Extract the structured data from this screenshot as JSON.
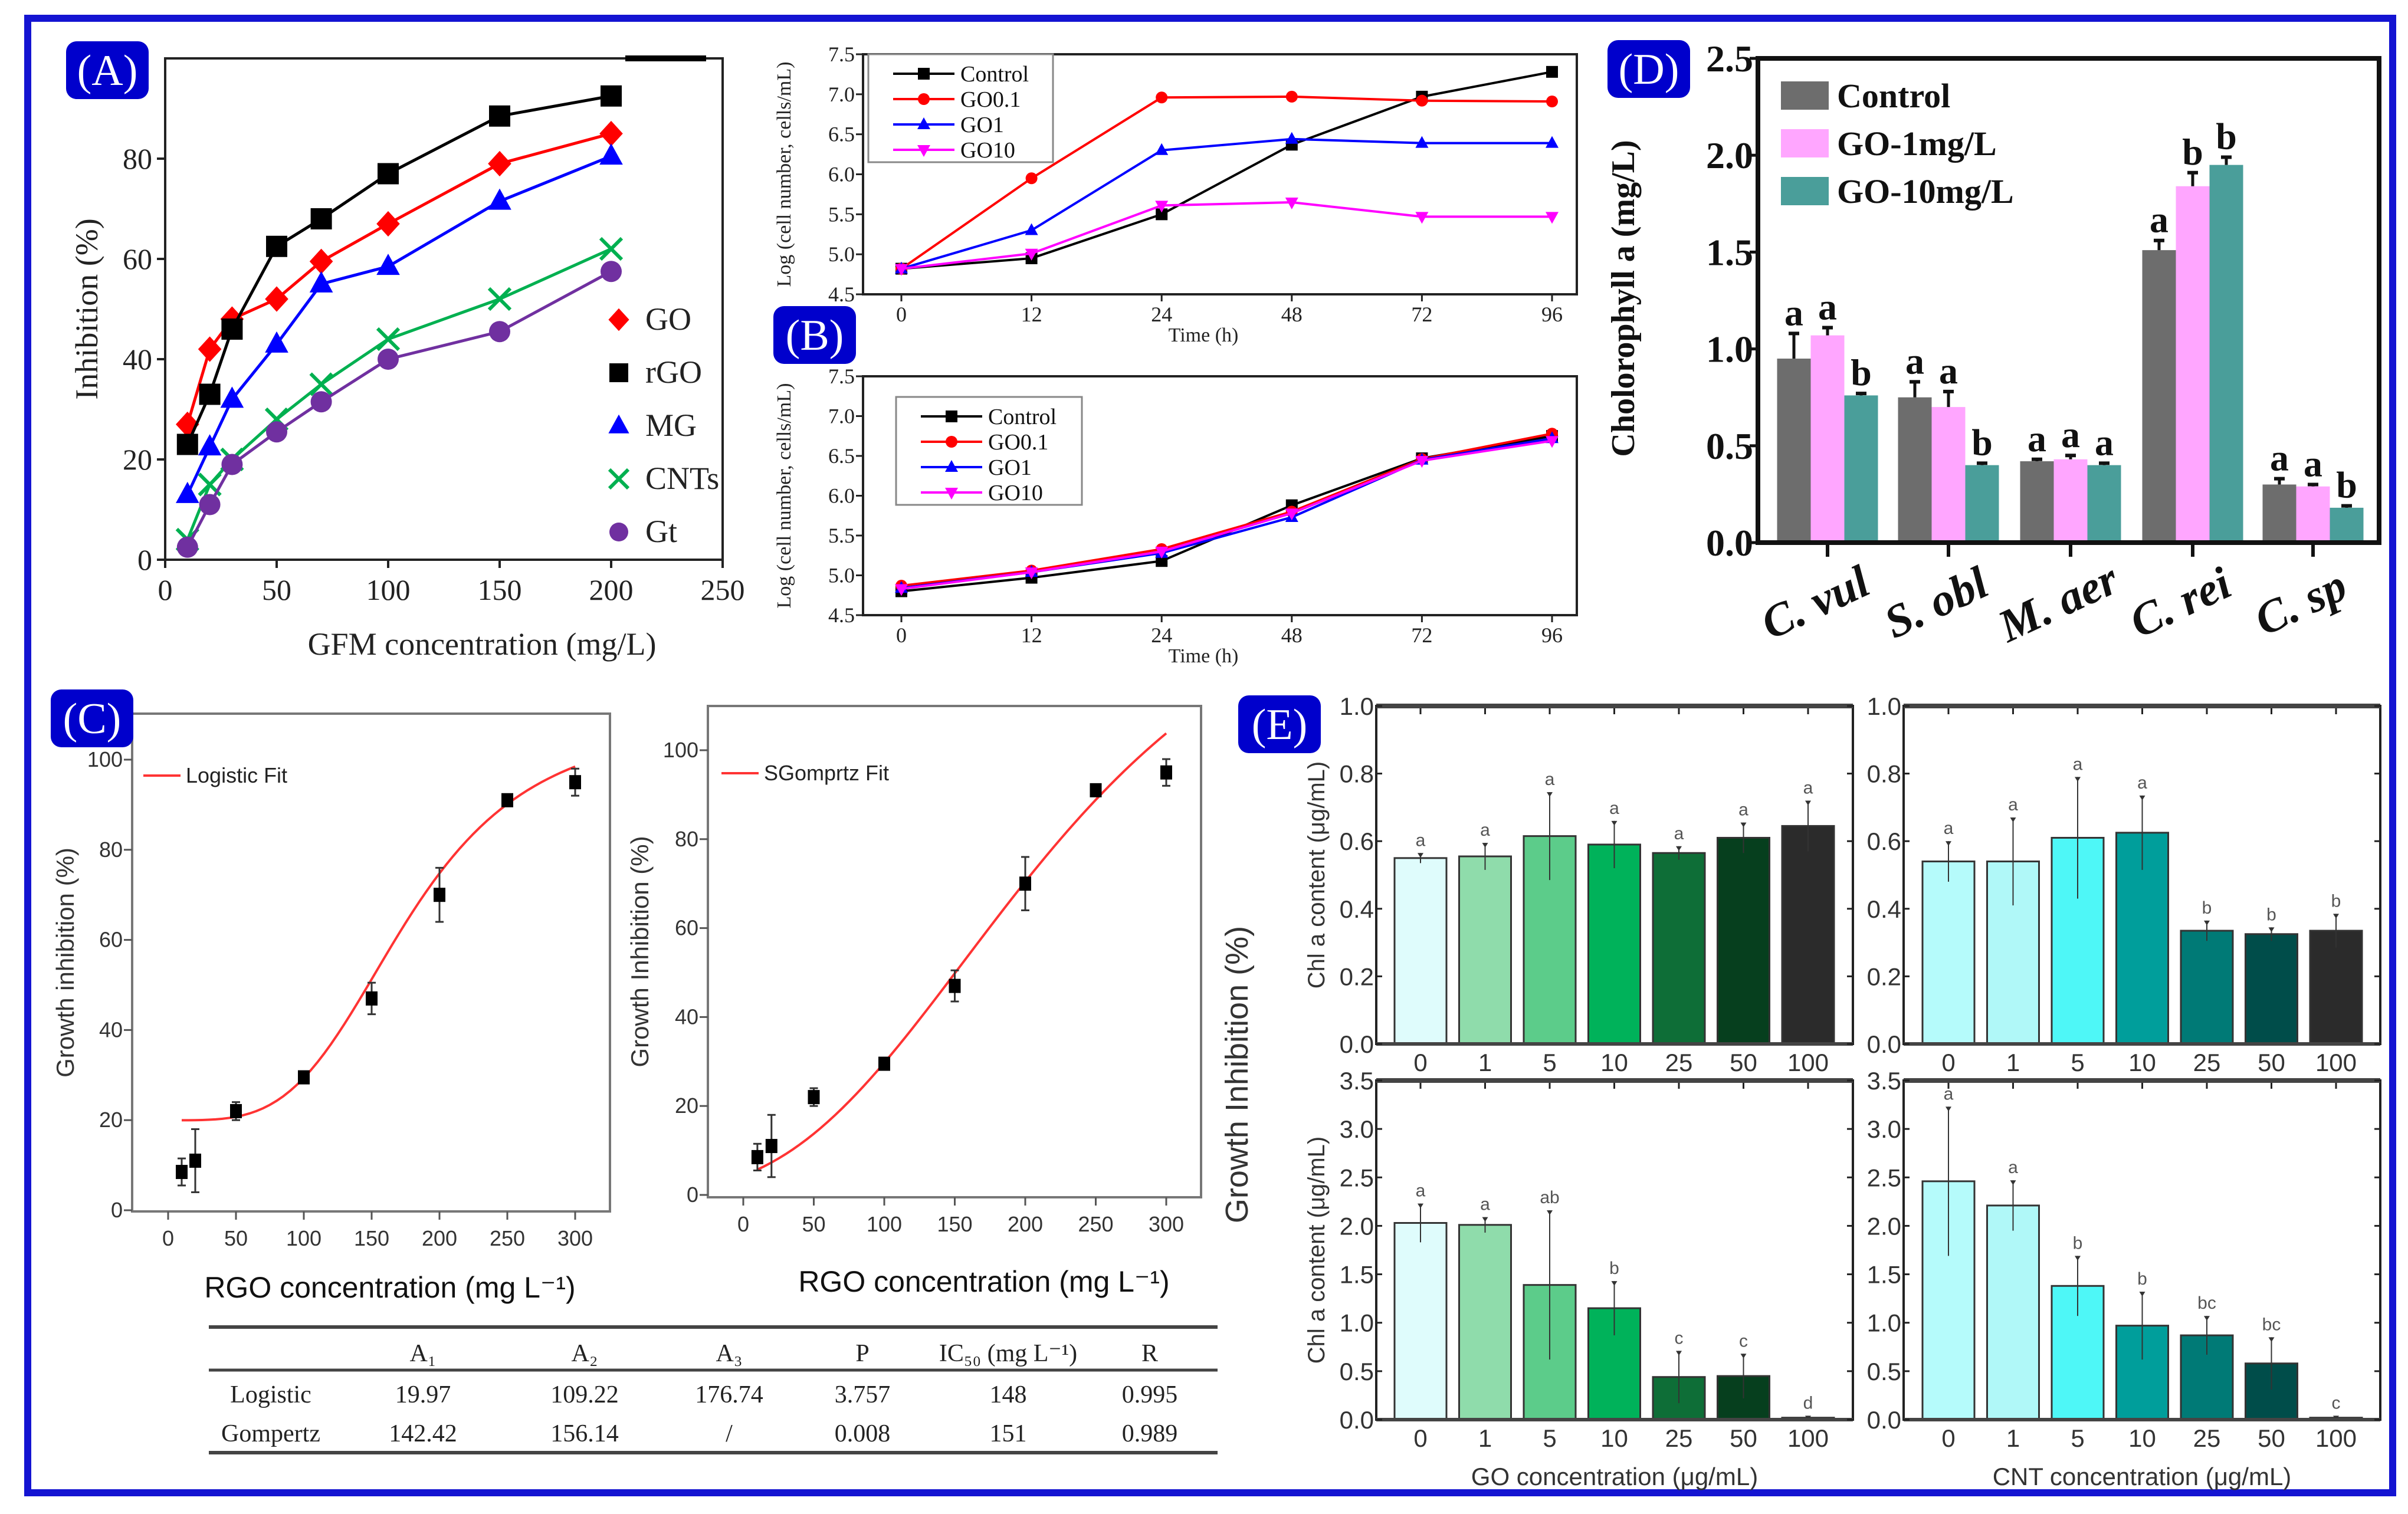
{
  "panel_labels": {
    "a": "(A)",
    "b": "(B)",
    "c": "(C)",
    "d": "(D)",
    "e": "(E)"
  },
  "colors": {
    "frame": "#1414d2",
    "panel_label_bg": "#0000cc"
  },
  "chart_data": [
    {
      "id": "A",
      "type": "line",
      "xlabel": "GFM concentration (mg/L)",
      "ylabel": "Inhibition (%)",
      "xlim": [
        0,
        250
      ],
      "ylim": [
        0,
        100
      ],
      "xticks": [
        "0",
        "50",
        "100",
        "150",
        "200",
        "250"
      ],
      "yticks": [
        "0",
        "20",
        "40",
        "60",
        "80"
      ],
      "x": [
        10,
        20,
        30,
        50,
        70,
        100,
        150,
        200
      ],
      "legend_position": "right",
      "series": [
        {
          "name": "GO",
          "marker": "diamond",
          "color": "#ff0000",
          "values": [
            27,
            42,
            48,
            52,
            59.5,
            67,
            79,
            85
          ]
        },
        {
          "name": "rGO",
          "marker": "square",
          "color": "#000000",
          "values": [
            23,
            33,
            46,
            62.5,
            68,
            77,
            88.5,
            92.5
          ]
        },
        {
          "name": "MG",
          "marker": "triangle",
          "color": "#0000ff",
          "values": [
            13,
            22.5,
            32,
            43,
            55,
            58.5,
            71.5,
            80.5
          ]
        },
        {
          "name": "CNTs",
          "marker": "x",
          "color": "#00b050",
          "values": [
            4,
            15,
            20,
            28,
            35,
            44,
            52,
            62
          ]
        },
        {
          "name": "Gt",
          "marker": "circle",
          "color": "#7030a0",
          "values": [
            2.5,
            11,
            19,
            25.5,
            31.5,
            40,
            45.5,
            57.5
          ]
        }
      ]
    },
    {
      "id": "B-top",
      "type": "line",
      "xlabel": "Time (h)",
      "ylabel": "Log (cell number, cells/mL)",
      "ylim": [
        4.5,
        7.5
      ],
      "categories": [
        "0",
        "12",
        "24",
        "48",
        "72",
        "96"
      ],
      "yticks": [
        "4.5",
        "5.0",
        "5.5",
        "6.0",
        "6.5",
        "7.0",
        "7.5"
      ],
      "legend_position": "top-left",
      "series": [
        {
          "name": "Control",
          "marker": "square",
          "color": "#000000",
          "values": [
            4.82,
            4.95,
            5.5,
            6.37,
            6.97,
            7.28
          ]
        },
        {
          "name": "GO0.1",
          "marker": "circle",
          "color": "#ff0000",
          "values": [
            4.82,
            5.95,
            6.96,
            6.97,
            6.92,
            6.91
          ]
        },
        {
          "name": "GO1",
          "marker": "triangle",
          "color": "#0000ff",
          "values": [
            4.82,
            5.3,
            6.3,
            6.44,
            6.39,
            6.39
          ]
        },
        {
          "name": "GO10",
          "marker": "tridown",
          "color": "#ff00ff",
          "values": [
            4.82,
            5.01,
            5.61,
            5.65,
            5.47,
            5.47
          ]
        }
      ]
    },
    {
      "id": "B-bottom",
      "type": "line",
      "xlabel": "Time (h)",
      "ylabel": "Log (cell number, cells/mL)",
      "ylim": [
        4.5,
        7.5
      ],
      "categories": [
        "0",
        "12",
        "24",
        "48",
        "72",
        "96"
      ],
      "yticks": [
        "4.5",
        "5.0",
        "5.5",
        "6.0",
        "6.5",
        "7.0",
        "7.5"
      ],
      "legend_position": "top-left",
      "series": [
        {
          "name": "Control",
          "marker": "square",
          "color": "#000000",
          "values": [
            4.8,
            4.97,
            5.18,
            5.88,
            6.47,
            6.75
          ]
        },
        {
          "name": "GO0.1",
          "marker": "circle",
          "color": "#ff0000",
          "values": [
            4.87,
            5.06,
            5.33,
            5.8,
            6.46,
            6.78
          ]
        },
        {
          "name": "GO1",
          "marker": "triangle",
          "color": "#0000ff",
          "values": [
            4.84,
            5.04,
            5.28,
            5.73,
            6.45,
            6.72
          ]
        },
        {
          "name": "GO10",
          "marker": "tridown",
          "color": "#ff00ff",
          "values": [
            4.83,
            5.04,
            5.3,
            5.78,
            6.44,
            6.69
          ]
        }
      ]
    },
    {
      "id": "C-logistic",
      "type": "scatter",
      "xlabel": "RGO concentration (mg L⁻¹)",
      "ylabel": "Growth inhibition (%)",
      "xlim": [
        0,
        300
      ],
      "ylim": [
        0,
        100
      ],
      "xticks": [
        "0",
        "50",
        "100",
        "150",
        "200",
        "250",
        "300"
      ],
      "yticks": [
        "0",
        "20",
        "40",
        "60",
        "80",
        "100"
      ],
      "x": [
        10,
        20,
        50,
        100,
        150,
        200,
        250,
        300
      ],
      "values": [
        8.5,
        11,
        22,
        29.5,
        47,
        70,
        91,
        95
      ],
      "errors": [
        3,
        7,
        2,
        1,
        3.5,
        6,
        1,
        3
      ],
      "fit": {
        "name": "Logistic Fit",
        "model": "logistic",
        "A1": 19.97,
        "A2": 109.22,
        "x0": 176.74,
        "p": 3.757,
        "color": "#ff3333"
      }
    },
    {
      "id": "C-gompertz",
      "type": "scatter",
      "xlabel": "RGO concentration (mg L⁻¹)",
      "ylabel": "Growth Inhibition (%)",
      "xlim": [
        0,
        300
      ],
      "ylim": [
        0,
        110
      ],
      "xticks": [
        "0",
        "50",
        "100",
        "150",
        "200",
        "250",
        "300"
      ],
      "yticks": [
        "0",
        "20",
        "40",
        "60",
        "80",
        "100"
      ],
      "x": [
        10,
        20,
        50,
        100,
        150,
        200,
        250,
        300
      ],
      "values": [
        8.5,
        11,
        22,
        29.5,
        47,
        70,
        91,
        95
      ],
      "errors": [
        3,
        7,
        2,
        1,
        3.5,
        6,
        1,
        3
      ],
      "fit": {
        "name": "SGomprtz Fit",
        "model": "gompertz",
        "a": 142.42,
        "xc": 156.14,
        "k": 0.008,
        "color": "#ff3333"
      }
    },
    {
      "id": "C-table",
      "type": "table",
      "headers": [
        "",
        "A₁",
        "A₂",
        "A₃",
        "P",
        "IC₅₀ (mg L⁻¹)",
        "R"
      ],
      "rows": [
        [
          "Logistic",
          "19.97",
          "109.22",
          "176.74",
          "3.757",
          "148",
          "0.995"
        ],
        [
          "Gompertz",
          "142.42",
          "156.14",
          "/",
          "0.008",
          "151",
          "0.989"
        ]
      ]
    },
    {
      "id": "D",
      "type": "bar",
      "ylabel": "Cholorophyll a (mg/L)",
      "ylim": [
        0,
        2.5
      ],
      "yticks": [
        "0.0",
        "0.5",
        "1.0",
        "1.5",
        "2.0",
        "2.5"
      ],
      "categories": [
        "C. vul",
        "S. obl",
        "M. aer",
        "C. rei",
        "C. sp"
      ],
      "legend_position": "top-left",
      "series": [
        {
          "name": "Control",
          "color": "#6d6d6d",
          "values": [
            0.95,
            0.75,
            0.42,
            1.51,
            0.3
          ],
          "errors": [
            0.13,
            0.08,
            0.01,
            0.05,
            0.03
          ],
          "letters": [
            "a",
            "a",
            "a",
            "a",
            "a"
          ]
        },
        {
          "name": "GO-1mg/L",
          "color": "#ffa6ff",
          "values": [
            1.07,
            0.7,
            0.43,
            1.84,
            0.29
          ],
          "errors": [
            0.04,
            0.08,
            0.02,
            0.07,
            0.01
          ],
          "letters": [
            "a",
            "a",
            "a",
            "b",
            "a"
          ]
        },
        {
          "name": "GO-10mg/L",
          "color": "#4a9e9a",
          "values": [
            0.76,
            0.4,
            0.4,
            1.95,
            0.18
          ],
          "errors": [
            0.01,
            0.01,
            0.01,
            0.04,
            0.01
          ],
          "letters": [
            "b",
            "b",
            "a",
            "b",
            "b"
          ]
        }
      ]
    },
    {
      "id": "E-GO-top",
      "type": "bar",
      "ylabel": "Chl a content (μg/mL)",
      "ylim": [
        0,
        1.0
      ],
      "yticks": [
        "0.0",
        "0.2",
        "0.4",
        "0.6",
        "0.8",
        "1.0"
      ],
      "categories": [
        "0",
        "1",
        "5",
        "10",
        "25",
        "50",
        "100"
      ],
      "values": [
        0.55,
        0.555,
        0.615,
        0.59,
        0.565,
        0.61,
        0.645
      ],
      "errors": [
        0.015,
        0.04,
        0.13,
        0.07,
        0.02,
        0.045,
        0.075
      ],
      "letters": [
        "a",
        "a",
        "a",
        "a",
        "a",
        "a",
        "a"
      ],
      "colors": [
        "#dffcfc",
        "#8fdcab",
        "#5ccc8a",
        "#00b25a",
        "#0e6e37",
        "#063f1e",
        "#2b2b2b"
      ]
    },
    {
      "id": "E-CNT-top",
      "type": "bar",
      "ylim": [
        0,
        1.0
      ],
      "yticks": [
        "0.0",
        "0.2",
        "0.4",
        "0.6",
        "0.8",
        "1.0"
      ],
      "categories": [
        "0",
        "1",
        "5",
        "10",
        "25",
        "50",
        "100"
      ],
      "values": [
        0.54,
        0.54,
        0.61,
        0.625,
        0.335,
        0.325,
        0.335
      ],
      "errors": [
        0.06,
        0.13,
        0.18,
        0.11,
        0.03,
        0.02,
        0.05
      ],
      "letters": [
        "a",
        "a",
        "a",
        "a",
        "b",
        "b",
        "b"
      ],
      "colors": [
        "#b5fbfb",
        "#b0f8f8",
        "#4ef7f7",
        "#009e9b",
        "#007a76",
        "#004d4a",
        "#2b2b2b"
      ]
    },
    {
      "id": "E-GO-bottom",
      "type": "bar",
      "ylabel": "Chl a content (μg/mL)",
      "xlabel": "GO concentration (μg/mL)",
      "ylim": [
        0,
        3.5
      ],
      "yticks": [
        "0.0",
        "0.5",
        "1.0",
        "1.5",
        "2.0",
        "2.5",
        "3.0",
        "3.5"
      ],
      "categories": [
        "0",
        "1",
        "5",
        "10",
        "25",
        "50",
        "100"
      ],
      "values": [
        2.03,
        2.01,
        1.39,
        1.15,
        0.44,
        0.45,
        0.02
      ],
      "errors": [
        0.2,
        0.08,
        0.77,
        0.28,
        0.27,
        0.23,
        0.02
      ],
      "letters": [
        "a",
        "a",
        "ab",
        "b",
        "c",
        "c",
        "d"
      ],
      "colors": [
        "#dffcfc",
        "#8fdcab",
        "#5ccc8a",
        "#00b25a",
        "#0e6e37",
        "#063f1e",
        "#2b2b2b"
      ]
    },
    {
      "id": "E-CNT-bottom",
      "type": "bar",
      "xlabel": "CNT concentration (μg/mL)",
      "ylim": [
        0,
        3.5
      ],
      "yticks": [
        "0.0",
        "0.5",
        "1.0",
        "1.5",
        "2.0",
        "2.5",
        "3.0",
        "3.5"
      ],
      "categories": [
        "0",
        "1",
        "5",
        "10",
        "25",
        "50",
        "100"
      ],
      "values": [
        2.46,
        2.21,
        1.38,
        0.97,
        0.87,
        0.58,
        0.02
      ],
      "errors": [
        0.77,
        0.26,
        0.31,
        0.35,
        0.2,
        0.27,
        0.02
      ],
      "letters": [
        "a",
        "a",
        "b",
        "b",
        "bc",
        "bc",
        "c"
      ],
      "colors": [
        "#b5fbfb",
        "#b0f8f8",
        "#4ef7f7",
        "#009e9b",
        "#007a76",
        "#004d4a",
        "#2b2b2b"
      ]
    }
  ],
  "panel_e_shared_ylabel": "Growth Inhibition (%)"
}
